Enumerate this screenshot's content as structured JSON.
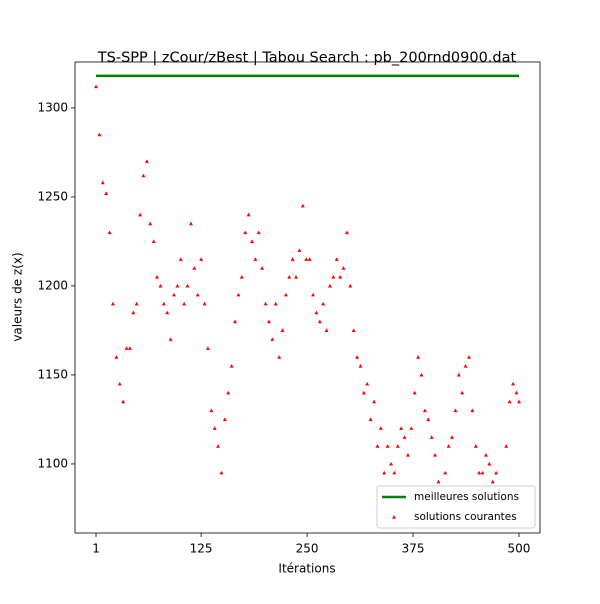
{
  "chart_data": {
    "type": "scatter",
    "title": "TS-SPP | zCour/zBest | Tabou Search : pb_200rnd0900.dat",
    "x_label": "Itérations",
    "y_label": "valeurs de z(x)",
    "xlim": [
      -23.8,
      524.8
    ],
    "ylim": [
      1061.2,
      1325.8
    ],
    "xticks": [
      1,
      125,
      250,
      375,
      500
    ],
    "yticks": [
      1100,
      1150,
      1200,
      1250,
      1300
    ],
    "legend": "lower right",
    "series": [
      {
        "name": "meilleures solutions",
        "color": "#008000",
        "type": "line",
        "x": [
          1,
          500
        ],
        "values": [
          1318,
          1318
        ]
      },
      {
        "name": "solutions courantes",
        "color": "#ff0000",
        "type": "scatter",
        "x": [
          1,
          5,
          9,
          13,
          17,
          21,
          25,
          29,
          33,
          37,
          41,
          45,
          49,
          53,
          57,
          61,
          65,
          69,
          73,
          77,
          81,
          85,
          89,
          93,
          97,
          101,
          105,
          109,
          113,
          117,
          121,
          125,
          129,
          133,
          137,
          141,
          145,
          149,
          153,
          157,
          161,
          165,
          169,
          173,
          177,
          181,
          185,
          189,
          193,
          197,
          201,
          205,
          209,
          213,
          217,
          221,
          225,
          229,
          233,
          237,
          241,
          245,
          249,
          253,
          257,
          261,
          265,
          269,
          273,
          277,
          281,
          285,
          289,
          293,
          297,
          301,
          305,
          309,
          313,
          317,
          321,
          325,
          329,
          333,
          337,
          341,
          345,
          349,
          353,
          357,
          361,
          365,
          369,
          373,
          377,
          381,
          385,
          389,
          393,
          397,
          401,
          405,
          409,
          413,
          417,
          421,
          425,
          429,
          433,
          437,
          441,
          445,
          449,
          453,
          457,
          461,
          465,
          469,
          473,
          477,
          481,
          485,
          489,
          493,
          497,
          500
        ],
        "values": [
          1312,
          1285,
          1258,
          1252,
          1230,
          1190,
          1160,
          1145,
          1135,
          1165,
          1165,
          1185,
          1190,
          1240,
          1262,
          1270,
          1235,
          1225,
          1205,
          1200,
          1190,
          1185,
          1170,
          1195,
          1200,
          1215,
          1190,
          1200,
          1235,
          1210,
          1195,
          1215,
          1190,
          1165,
          1130,
          1120,
          1110,
          1095,
          1125,
          1140,
          1155,
          1180,
          1195,
          1205,
          1230,
          1240,
          1225,
          1215,
          1230,
          1210,
          1190,
          1180,
          1170,
          1190,
          1160,
          1175,
          1195,
          1205,
          1215,
          1205,
          1220,
          1245,
          1215,
          1215,
          1195,
          1185,
          1180,
          1190,
          1175,
          1200,
          1205,
          1215,
          1205,
          1210,
          1230,
          1200,
          1175,
          1160,
          1155,
          1140,
          1145,
          1125,
          1135,
          1110,
          1120,
          1095,
          1110,
          1100,
          1095,
          1110,
          1120,
          1115,
          1105,
          1120,
          1140,
          1160,
          1150,
          1130,
          1125,
          1115,
          1105,
          1090,
          1070,
          1095,
          1110,
          1115,
          1130,
          1150,
          1140,
          1155,
          1160,
          1130,
          1110,
          1095,
          1095,
          1105,
          1100,
          1090,
          1095,
          1085,
          1080,
          1110,
          1135,
          1145,
          1140,
          1135
        ]
      }
    ]
  }
}
